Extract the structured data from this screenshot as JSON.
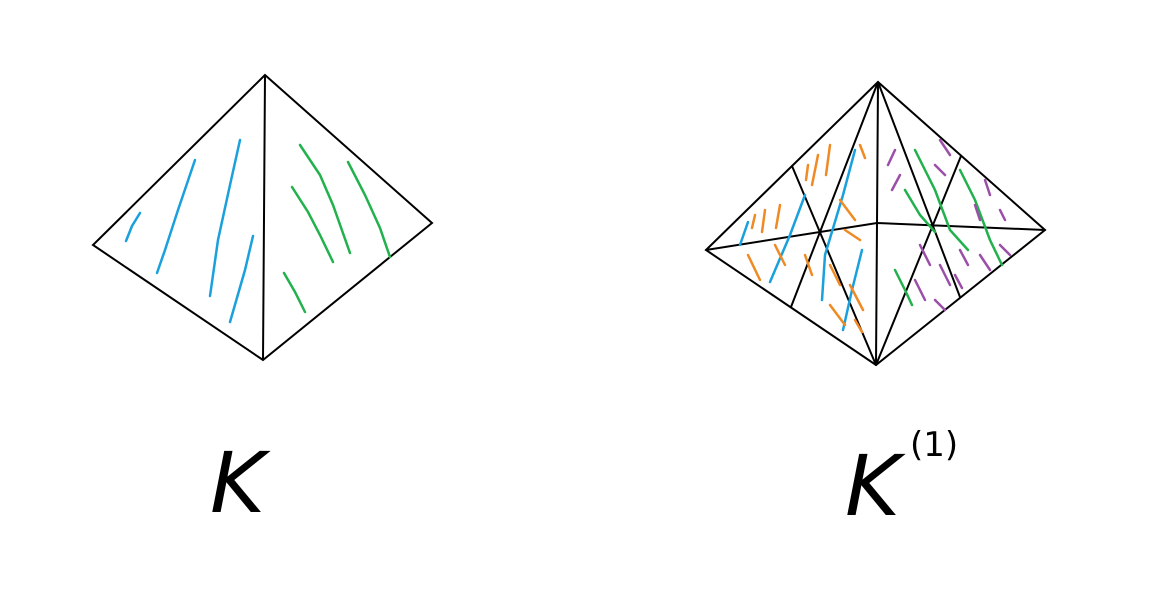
{
  "labels": {
    "left": "K",
    "right_base": "K",
    "right_superscript": "(1)"
  }
}
